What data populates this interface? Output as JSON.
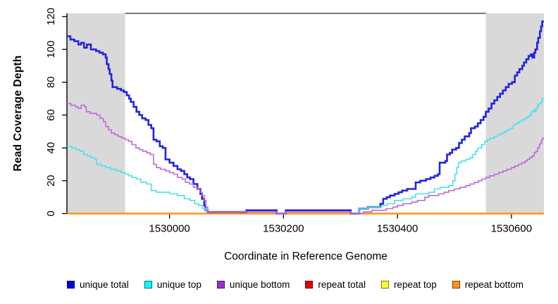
{
  "chart_data": {
    "type": "line",
    "subtype": "step-after",
    "title": "",
    "xlabel": "Coordinate in Reference Genome",
    "ylabel": "Read Coverage Depth",
    "xlim": [
      1529820,
      1530657
    ],
    "ylim": [
      0,
      120
    ],
    "x_ticks": [
      "1530000",
      "1530200",
      "1530400",
      "1530600"
    ],
    "x_tick_values": [
      1530000,
      1530200,
      1530400,
      1530600
    ],
    "y_ticks": [
      "0",
      "20",
      "40",
      "60",
      "80",
      "100",
      "120"
    ],
    "y_tick_values": [
      0,
      20,
      40,
      60,
      80,
      100,
      120
    ],
    "grid": "off",
    "legend_position": "bottom",
    "background": "#ffffff",
    "shade_color": "#d9d9d9",
    "shaded_regions": [
      {
        "x0": 1529820,
        "x1": 1529922
      },
      {
        "x0": 1530555,
        "x1": 1530657
      }
    ],
    "series": [
      {
        "name": "unique total",
        "color": "#2323e2",
        "width": 2.6,
        "points": [
          [
            1529820,
            108
          ],
          [
            1529826,
            106
          ],
          [
            1529833,
            105
          ],
          [
            1529840,
            103
          ],
          [
            1529845,
            104
          ],
          [
            1529850,
            101
          ],
          [
            1529855,
            103
          ],
          [
            1529862,
            100
          ],
          [
            1529871,
            99
          ],
          [
            1529877,
            98
          ],
          [
            1529883,
            97
          ],
          [
            1529888,
            95
          ],
          [
            1529890,
            91
          ],
          [
            1529893,
            88
          ],
          [
            1529895,
            85
          ],
          [
            1529898,
            81
          ],
          [
            1529900,
            77
          ],
          [
            1529908,
            76
          ],
          [
            1529915,
            75
          ],
          [
            1529920,
            74
          ],
          [
            1529925,
            72
          ],
          [
            1529929,
            70
          ],
          [
            1529932,
            68
          ],
          [
            1529937,
            65
          ],
          [
            1529942,
            62
          ],
          [
            1529947,
            60
          ],
          [
            1529952,
            58
          ],
          [
            1529958,
            57
          ],
          [
            1529963,
            54
          ],
          [
            1529968,
            52
          ],
          [
            1529972,
            45
          ],
          [
            1529977,
            44
          ],
          [
            1529983,
            41
          ],
          [
            1529988,
            40
          ],
          [
            1529993,
            33
          ],
          [
            1530000,
            31
          ],
          [
            1530007,
            29
          ],
          [
            1530014,
            27
          ],
          [
            1530020,
            26
          ],
          [
            1530026,
            24
          ],
          [
            1530031,
            22
          ],
          [
            1530036,
            21
          ],
          [
            1530042,
            18
          ],
          [
            1530049,
            15
          ],
          [
            1530054,
            12
          ],
          [
            1530057,
            9
          ],
          [
            1530061,
            5
          ],
          [
            1530063,
            2
          ],
          [
            1530067,
            1
          ],
          [
            1530135,
            2
          ],
          [
            1530188,
            0
          ],
          [
            1530204,
            2
          ],
          [
            1530318,
            0
          ],
          [
            1530333,
            3
          ],
          [
            1530348,
            4
          ],
          [
            1530370,
            6
          ],
          [
            1530375,
            9
          ],
          [
            1530381,
            10
          ],
          [
            1530387,
            11
          ],
          [
            1530395,
            12
          ],
          [
            1530402,
            13
          ],
          [
            1530408,
            14
          ],
          [
            1530417,
            15
          ],
          [
            1530432,
            19
          ],
          [
            1530440,
            20
          ],
          [
            1530450,
            21
          ],
          [
            1530458,
            22
          ],
          [
            1530465,
            23
          ],
          [
            1530471,
            24
          ],
          [
            1530474,
            31
          ],
          [
            1530484,
            32
          ],
          [
            1530487,
            36
          ],
          [
            1530492,
            37
          ],
          [
            1530496,
            39
          ],
          [
            1530503,
            40
          ],
          [
            1530508,
            43
          ],
          [
            1530513,
            45
          ],
          [
            1530518,
            47
          ],
          [
            1530526,
            49
          ],
          [
            1530529,
            52
          ],
          [
            1530536,
            53
          ],
          [
            1530541,
            55
          ],
          [
            1530546,
            57
          ],
          [
            1530551,
            59
          ],
          [
            1530555,
            62
          ],
          [
            1530560,
            64
          ],
          [
            1530565,
            67
          ],
          [
            1530570,
            69
          ],
          [
            1530575,
            71
          ],
          [
            1530580,
            73
          ],
          [
            1530585,
            75
          ],
          [
            1530590,
            77
          ],
          [
            1530595,
            79
          ],
          [
            1530601,
            80
          ],
          [
            1530606,
            84
          ],
          [
            1530610,
            86
          ],
          [
            1530614,
            88
          ],
          [
            1530619,
            90
          ],
          [
            1530622,
            92
          ],
          [
            1530626,
            94
          ],
          [
            1530630,
            96
          ],
          [
            1530634,
            97
          ],
          [
            1530637,
            95
          ],
          [
            1530640,
            98
          ],
          [
            1530642,
            100
          ],
          [
            1530645,
            104
          ],
          [
            1530647,
            107
          ],
          [
            1530650,
            111
          ],
          [
            1530652,
            114
          ],
          [
            1530654,
            117
          ],
          [
            1530657,
            117
          ]
        ]
      },
      {
        "name": "unique top",
        "color": "#49e2ec",
        "width": 1.6,
        "points": [
          [
            1529820,
            41
          ],
          [
            1529828,
            40
          ],
          [
            1529836,
            39
          ],
          [
            1529843,
            38
          ],
          [
            1529849,
            36
          ],
          [
            1529856,
            35
          ],
          [
            1529862,
            34
          ],
          [
            1529869,
            33
          ],
          [
            1529872,
            30
          ],
          [
            1529880,
            29
          ],
          [
            1529888,
            28
          ],
          [
            1529897,
            27
          ],
          [
            1529906,
            26
          ],
          [
            1529915,
            25
          ],
          [
            1529922,
            24
          ],
          [
            1529928,
            23
          ],
          [
            1529934,
            22
          ],
          [
            1529942,
            21
          ],
          [
            1529950,
            19
          ],
          [
            1529960,
            18
          ],
          [
            1529968,
            14
          ],
          [
            1529977,
            13
          ],
          [
            1530000,
            12
          ],
          [
            1530014,
            11
          ],
          [
            1530026,
            9
          ],
          [
            1530036,
            8
          ],
          [
            1530044,
            6
          ],
          [
            1530051,
            5
          ],
          [
            1530058,
            3
          ],
          [
            1530063,
            2
          ],
          [
            1530067,
            1
          ],
          [
            1530135,
            1
          ],
          [
            1530188,
            0
          ],
          [
            1530204,
            1
          ],
          [
            1530318,
            0
          ],
          [
            1530333,
            3
          ],
          [
            1530348,
            4
          ],
          [
            1530372,
            5
          ],
          [
            1530382,
            6
          ],
          [
            1530395,
            8
          ],
          [
            1530410,
            9
          ],
          [
            1530425,
            10
          ],
          [
            1530432,
            12
          ],
          [
            1530455,
            13
          ],
          [
            1530465,
            15
          ],
          [
            1530475,
            16
          ],
          [
            1530490,
            17
          ],
          [
            1530497,
            20
          ],
          [
            1530501,
            24
          ],
          [
            1530504,
            28
          ],
          [
            1530507,
            31
          ],
          [
            1530512,
            32
          ],
          [
            1530520,
            33
          ],
          [
            1530527,
            34
          ],
          [
            1530532,
            36
          ],
          [
            1530537,
            38
          ],
          [
            1530541,
            40
          ],
          [
            1530548,
            42
          ],
          [
            1530553,
            44
          ],
          [
            1530558,
            45
          ],
          [
            1530563,
            46
          ],
          [
            1530570,
            47
          ],
          [
            1530576,
            48
          ],
          [
            1530582,
            49
          ],
          [
            1530588,
            50
          ],
          [
            1530593,
            51
          ],
          [
            1530598,
            52
          ],
          [
            1530603,
            54
          ],
          [
            1530608,
            55
          ],
          [
            1530613,
            56
          ],
          [
            1530618,
            57
          ],
          [
            1530623,
            58
          ],
          [
            1530628,
            59
          ],
          [
            1530632,
            60
          ],
          [
            1530635,
            62
          ],
          [
            1530638,
            63
          ],
          [
            1530641,
            62
          ],
          [
            1530643,
            64
          ],
          [
            1530646,
            66
          ],
          [
            1530649,
            67
          ],
          [
            1530652,
            68
          ],
          [
            1530654,
            70
          ],
          [
            1530657,
            70
          ]
        ]
      },
      {
        "name": "unique bottom",
        "color": "#bc6ada",
        "width": 1.6,
        "points": [
          [
            1529820,
            67
          ],
          [
            1529827,
            66
          ],
          [
            1529835,
            65
          ],
          [
            1529840,
            64
          ],
          [
            1529845,
            66
          ],
          [
            1529851,
            65
          ],
          [
            1529854,
            62
          ],
          [
            1529861,
            61
          ],
          [
            1529872,
            60
          ],
          [
            1529878,
            58
          ],
          [
            1529884,
            56
          ],
          [
            1529888,
            53
          ],
          [
            1529893,
            51
          ],
          [
            1529898,
            49
          ],
          [
            1529904,
            48
          ],
          [
            1529910,
            47
          ],
          [
            1529916,
            46
          ],
          [
            1529922,
            45
          ],
          [
            1529928,
            44
          ],
          [
            1529934,
            42
          ],
          [
            1529941,
            40
          ],
          [
            1529947,
            39
          ],
          [
            1529953,
            38
          ],
          [
            1529960,
            37
          ],
          [
            1529966,
            36
          ],
          [
            1529972,
            30
          ],
          [
            1529977,
            28
          ],
          [
            1529984,
            27
          ],
          [
            1529993,
            26
          ],
          [
            1530000,
            25
          ],
          [
            1530007,
            24
          ],
          [
            1530014,
            22
          ],
          [
            1530022,
            21
          ],
          [
            1530028,
            19
          ],
          [
            1530035,
            18
          ],
          [
            1530042,
            16
          ],
          [
            1530049,
            15
          ],
          [
            1530053,
            13
          ],
          [
            1530057,
            11
          ],
          [
            1530061,
            8
          ],
          [
            1530064,
            4
          ],
          [
            1530067,
            1
          ],
          [
            1530135,
            1
          ],
          [
            1530188,
            0
          ],
          [
            1530204,
            1
          ],
          [
            1530318,
            0
          ],
          [
            1530340,
            1
          ],
          [
            1530355,
            2
          ],
          [
            1530380,
            3
          ],
          [
            1530392,
            4
          ],
          [
            1530400,
            5
          ],
          [
            1530410,
            6
          ],
          [
            1530425,
            7
          ],
          [
            1530435,
            8
          ],
          [
            1530448,
            10
          ],
          [
            1530455,
            11
          ],
          [
            1530472,
            12
          ],
          [
            1530482,
            13
          ],
          [
            1530490,
            14
          ],
          [
            1530500,
            15
          ],
          [
            1530510,
            16
          ],
          [
            1530520,
            17
          ],
          [
            1530527,
            18
          ],
          [
            1530535,
            19
          ],
          [
            1530542,
            20
          ],
          [
            1530548,
            21
          ],
          [
            1530555,
            22
          ],
          [
            1530562,
            23
          ],
          [
            1530570,
            24
          ],
          [
            1530578,
            25
          ],
          [
            1530585,
            26
          ],
          [
            1530592,
            27
          ],
          [
            1530600,
            28
          ],
          [
            1530606,
            29
          ],
          [
            1530612,
            30
          ],
          [
            1530618,
            31
          ],
          [
            1530624,
            32
          ],
          [
            1530628,
            33
          ],
          [
            1530632,
            34
          ],
          [
            1530636,
            35
          ],
          [
            1530640,
            37
          ],
          [
            1530643,
            38
          ],
          [
            1530646,
            40
          ],
          [
            1530649,
            42
          ],
          [
            1530651,
            43
          ],
          [
            1530653,
            45
          ],
          [
            1530655,
            46
          ],
          [
            1530657,
            46
          ]
        ]
      },
      {
        "name": "repeat total",
        "color": "#e00000",
        "width": 1.6,
        "points": [
          [
            1529820,
            0
          ],
          [
            1530657,
            0
          ]
        ]
      },
      {
        "name": "repeat top",
        "color": "#ffff2e",
        "width": 1.6,
        "points": [
          [
            1529820,
            0
          ],
          [
            1530657,
            0
          ]
        ]
      },
      {
        "name": "repeat bottom",
        "color": "#ff9414",
        "width": 2.4,
        "points": [
          [
            1529820,
            0
          ],
          [
            1530657,
            0
          ]
        ]
      }
    ],
    "draw_order": [
      3,
      4,
      5,
      0,
      1,
      2
    ],
    "legend": [
      {
        "label": "unique total",
        "fill": "#0000e0",
        "border": "#000070"
      },
      {
        "label": "unique top",
        "fill": "#00ffff",
        "border": "#00707a"
      },
      {
        "label": "unique bottom",
        "fill": "#9b30d2",
        "border": "#4a1070"
      },
      {
        "label": "repeat total",
        "fill": "#e60000",
        "border": "#700000"
      },
      {
        "label": "repeat top",
        "fill": "#ffff30",
        "border": "#7a7a00"
      },
      {
        "label": "repeat bottom",
        "fill": "#ff9414",
        "border": "#7a4a00"
      }
    ]
  }
}
